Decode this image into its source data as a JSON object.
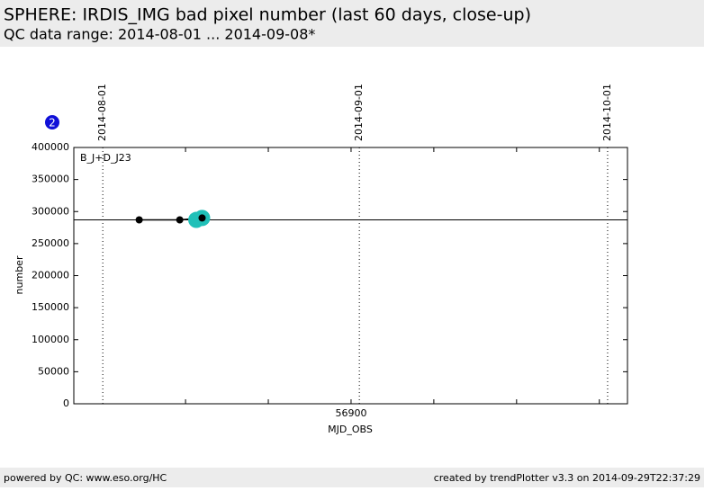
{
  "header": {
    "title": "SPHERE: IRDIS_IMG bad pixel number (last 60 days, close-up)",
    "subtitle": "QC data range: 2014-08-01 ... 2014-09-08*"
  },
  "badge": "2",
  "chart_data": {
    "type": "line",
    "xlabel": "MJD_OBS",
    "ylabel": "number",
    "xlim": [
      56866.5,
      56933.4
    ],
    "ylim": [
      0,
      400000
    ],
    "xticks": [
      56900
    ],
    "xminorticks": [
      56880,
      56890,
      56910,
      56920,
      56930
    ],
    "yticks": [
      0,
      50000,
      100000,
      150000,
      200000,
      250000,
      300000,
      350000,
      400000
    ],
    "date_markers": [
      {
        "value": 56870,
        "label": "2014-08-01"
      },
      {
        "value": 56901,
        "label": "2014-09-01"
      },
      {
        "value": 56931,
        "label": "2014-10-01"
      }
    ],
    "reference_line": 287000,
    "series": [
      {
        "name": "B_J+D_J23",
        "color": "#000000",
        "x": [
          56874.4,
          56879.3,
          56882.0
        ],
        "values": [
          287000,
          287000,
          290000
        ]
      }
    ],
    "highlight": {
      "color": "#20c0b8",
      "x": [
        56881.3,
        56882.0
      ],
      "values": [
        287000,
        290000
      ]
    }
  },
  "footer": {
    "left": "powered by QC: www.eso.org/HC",
    "right": "created by trendPlotter v3.3 on 2014-09-29T22:37:29"
  }
}
